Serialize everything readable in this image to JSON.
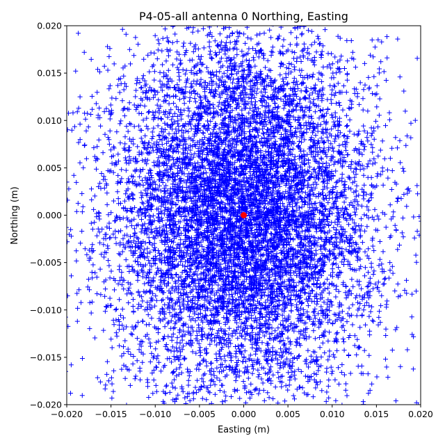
{
  "chart_data": {
    "type": "scatter",
    "title": "P4-05-all antenna 0 Northing, Easting",
    "xlabel": "Easting (m)",
    "ylabel": "Northing (m)",
    "xlim": [
      -0.02,
      0.02
    ],
    "ylim": [
      -0.02,
      0.02
    ],
    "xticks": [
      -0.02,
      -0.015,
      -0.01,
      -0.005,
      0.0,
      0.005,
      0.01,
      0.015,
      0.02
    ],
    "yticks": [
      -0.02,
      -0.015,
      -0.01,
      -0.005,
      0.0,
      0.005,
      0.01,
      0.015,
      0.02
    ],
    "xtick_labels": [
      "−0.020",
      "−0.015",
      "−0.010",
      "−0.005",
      "0.000",
      "0.005",
      "0.010",
      "0.015",
      "0.020"
    ],
    "ytick_labels": [
      "−0.020",
      "−0.015",
      "−0.010",
      "−0.005",
      "0.000",
      "0.005",
      "0.010",
      "0.015",
      "0.020"
    ],
    "grid": false,
    "series": [
      {
        "marker": "plus",
        "color": "#0000ff",
        "distribution": "dense cloud centered near 0, spread ~0.008 m in Easting and ~0.01 m in Northing, filling the plot",
        "points": [
          [
            -0.0185,
            0.0125
          ],
          [
            -0.0178,
            0.0089
          ],
          [
            -0.0192,
            0.0042
          ],
          [
            -0.0165,
            0.0154
          ],
          [
            -0.0171,
            -0.0031
          ],
          [
            -0.0188,
            -0.0112
          ],
          [
            -0.0195,
            -0.0158
          ],
          [
            -0.0162,
            -0.0176
          ],
          [
            -0.0149,
            -0.0193
          ],
          [
            -0.0154,
            0.0178
          ],
          [
            -0.0133,
            0.0191
          ],
          [
            0.0181,
            0.0131
          ],
          [
            0.0174,
            0.0186
          ],
          [
            0.0189,
            0.0097
          ],
          [
            0.0168,
            0.0047
          ],
          [
            0.0193,
            -0.0024
          ],
          [
            0.0177,
            -0.0085
          ],
          [
            0.0185,
            -0.0142
          ],
          [
            0.0163,
            -0.0171
          ],
          [
            0.0172,
            -0.0196
          ],
          [
            0.0155,
            0.0162
          ],
          [
            0.0141,
            -0.0188
          ],
          [
            -0.0121,
            0.0048
          ],
          [
            0.0118,
            -0.0052
          ]
        ]
      },
      {
        "marker": "circle",
        "color": "#ff0000",
        "points": [
          [
            0.0,
            0.0
          ]
        ]
      }
    ]
  }
}
